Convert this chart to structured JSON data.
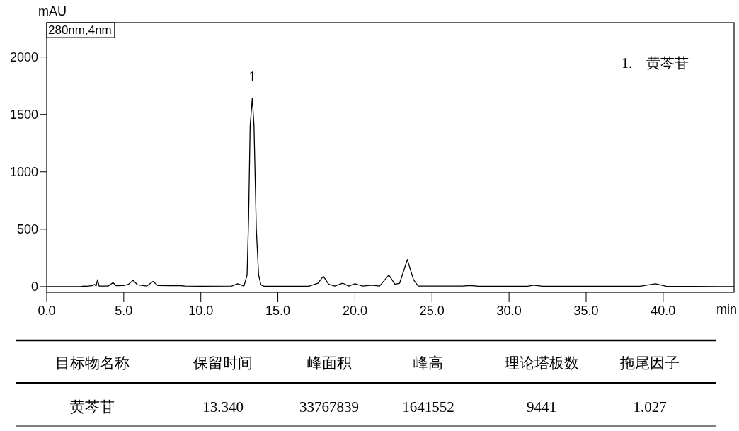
{
  "chart_data": {
    "type": "line",
    "xlabel": "min",
    "ylabel": "mAU",
    "color": "#000000",
    "x": [
      0,
      2.2,
      2.4,
      2.6,
      3.0,
      3.1,
      3.2,
      3.3,
      3.4,
      4.0,
      4.3,
      4.5,
      5.0,
      5.3,
      5.6,
      5.9,
      6.5,
      6.9,
      7.2,
      8.0,
      8.5,
      9.0,
      10.0,
      12.0,
      12.4,
      12.8,
      13.0,
      13.1,
      13.2,
      13.34,
      13.45,
      13.6,
      13.75,
      13.9,
      14.1,
      17.0,
      17.6,
      17.95,
      18.3,
      18.7,
      19.2,
      19.6,
      20.0,
      20.5,
      21.1,
      21.6,
      22.2,
      22.6,
      22.9,
      23.4,
      23.8,
      24.1,
      25.0,
      27.0,
      27.5,
      28.0,
      31.2,
      31.6,
      32.2,
      38.5,
      39.5,
      40.2,
      44.6
    ],
    "values": [
      0,
      0,
      5,
      3,
      10,
      20,
      5,
      60,
      5,
      5,
      35,
      8,
      10,
      20,
      55,
      15,
      5,
      45,
      10,
      8,
      10,
      5,
      3,
      5,
      25,
      5,
      100,
      600,
      1400,
      1642,
      1400,
      500,
      100,
      15,
      3,
      3,
      30,
      90,
      20,
      5,
      30,
      5,
      25,
      5,
      12,
      5,
      100,
      20,
      30,
      235,
      60,
      5,
      5,
      5,
      10,
      3,
      3,
      12,
      3,
      3,
      25,
      3,
      0
    ],
    "xlim": [
      0,
      44.6
    ],
    "ylim": [
      -50,
      2300
    ],
    "xticks": [
      {
        "value": 0,
        "label": "0.0"
      },
      {
        "value": 5,
        "label": "5.0"
      },
      {
        "value": 10,
        "label": "10.0"
      },
      {
        "value": 15,
        "label": "15.0"
      },
      {
        "value": 20,
        "label": "20.0"
      },
      {
        "value": 25,
        "label": "25.0"
      },
      {
        "value": 30,
        "label": "30.0"
      },
      {
        "value": 35,
        "label": "35.0"
      },
      {
        "value": 40,
        "label": "40.0"
      }
    ],
    "yticks": [
      0,
      500,
      1000,
      1500,
      2000
    ],
    "annotations": [
      "280nm,4nm",
      {
        "text": "1",
        "x": 13.34,
        "y": 1641.552
      },
      "1.    黄芩苷",
      "目标物名称",
      "保留时间",
      "峰面积",
      "峰高",
      "理论塔板数",
      "拖尾因子",
      "黄芩苷",
      "13.340",
      "33767839",
      "1641552",
      "9441",
      "1.027"
    ]
  }
}
